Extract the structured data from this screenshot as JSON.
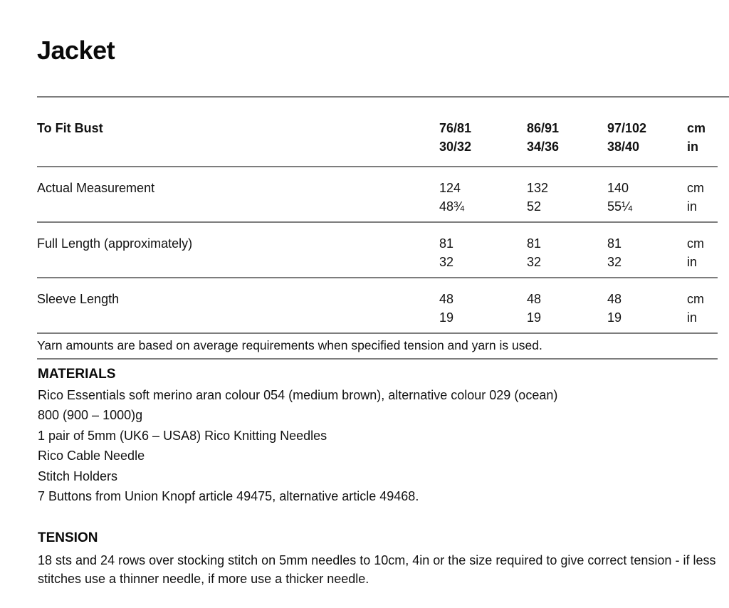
{
  "page": {
    "title": "Jacket"
  },
  "table": {
    "header": {
      "label": "To Fit Bust",
      "sizes": [
        [
          "76/81",
          "30/32"
        ],
        [
          "86/91",
          "34/36"
        ],
        [
          "97/102",
          "38/40"
        ]
      ],
      "units": [
        "cm",
        "in"
      ]
    },
    "rows": [
      {
        "label": "Actual Measurement",
        "values": [
          [
            "124",
            "48¾"
          ],
          [
            "132",
            "52"
          ],
          [
            "140",
            "55¼"
          ]
        ],
        "units": [
          "cm",
          "in"
        ]
      },
      {
        "label": "Full Length (approximately)",
        "values": [
          [
            "81",
            "32"
          ],
          [
            "81",
            "32"
          ],
          [
            "81",
            "32"
          ]
        ],
        "units": [
          "cm",
          "in"
        ]
      },
      {
        "label": "Sleeve Length",
        "values": [
          [
            "48",
            "19"
          ],
          [
            "48",
            "19"
          ],
          [
            "48",
            "19"
          ]
        ],
        "units": [
          "cm",
          "in"
        ]
      }
    ],
    "note": "Yarn amounts are based on average requirements when specified tension and yarn is used."
  },
  "materials": {
    "heading": "MATERIALS",
    "lines": [
      "Rico Essentials soft merino aran colour 054 (medium brown), alternative colour 029 (ocean)",
      "800 (900 – 1000)g",
      "1 pair of 5mm (UK6 – USA8) Rico Knitting Needles",
      "Rico Cable Needle",
      "Stitch Holders",
      "7 Buttons from Union Knopf article 49475, alternative article 49468."
    ]
  },
  "tension": {
    "heading": "TENSION",
    "text": "18 sts and 24 rows over stocking stitch on 5mm needles to 10cm, 4in or the size required to give correct tension - if less stitches use a thinner needle, if more use a thicker needle."
  }
}
